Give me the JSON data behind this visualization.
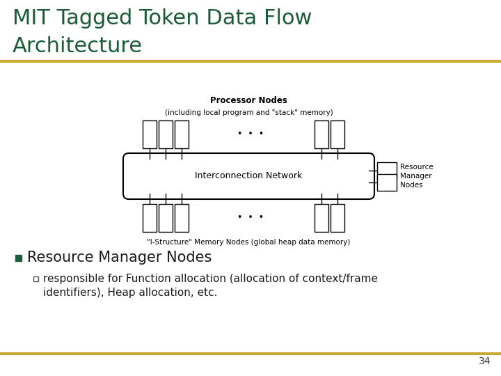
{
  "title_line1": "MIT Tagged Token Data Flow",
  "title_line2": "Architecture",
  "title_color": "#1a5c38",
  "title_fontsize": 22,
  "separator_color": "#c8a830",
  "page_number": "34",
  "bullet_text": "Resource Manager Nodes",
  "sub_bullet_line1": "responsible for Function allocation (allocation of context/frame",
  "sub_bullet_line2": "identifiers), Heap allocation, etc.",
  "network_label": "Interconnection Network",
  "proc_label": "Processor Nodes",
  "proc_sub_label": "(including local program and \"stack\" memory)",
  "mem_label": "\"I-Structure\" Memory Nodes (global heap data memory)",
  "res_label": "Resource\nManager\nNodes",
  "background_color": "#ffffff"
}
